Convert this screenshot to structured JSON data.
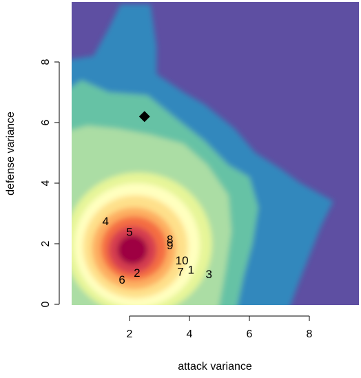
{
  "chart_data": {
    "type": "heatmap",
    "title": "",
    "xlabel": "attack variance",
    "ylabel": "defense variance",
    "xlim": [
      0.05,
      9.85
    ],
    "ylim": [
      -0.05,
      9.85
    ],
    "x_ticks": [
      2,
      4,
      6,
      8
    ],
    "y_ticks": [
      0,
      2,
      4,
      6,
      8
    ],
    "grid": false,
    "legend": "none",
    "colormap": "Spectral (high density = dark red, low density = purple)",
    "colors": {
      "background_low": "#5E4FA2",
      "blue": "#3288BD",
      "teal": "#66C2A5",
      "light_green": "#ABDDA4",
      "pale_yellow": "#E6F598",
      "cream": "#FFFFBF",
      "light_orange": "#FEE08B",
      "orange": "#FDAE61",
      "red_orange": "#F46D43",
      "red": "#D53E4F",
      "dark_red": "#9E0142"
    },
    "density_peak": {
      "x": 2.1,
      "y": 1.8
    },
    "labeled_points": [
      {
        "label": "1",
        "x": 4.05,
        "y": 1.15
      },
      {
        "label": "2",
        "x": 2.25,
        "y": 1.05
      },
      {
        "label": "3",
        "x": 4.65,
        "y": 1.0
      },
      {
        "label": "4",
        "x": 1.2,
        "y": 2.75
      },
      {
        "label": "5",
        "x": 2.0,
        "y": 2.4
      },
      {
        "label": "6",
        "x": 1.75,
        "y": 0.82
      },
      {
        "label": "7",
        "x": 3.7,
        "y": 1.08
      },
      {
        "label": "8",
        "x": 3.35,
        "y": 2.15
      },
      {
        "label": "9",
        "x": 3.35,
        "y": 1.95
      },
      {
        "label": "10",
        "x": 3.75,
        "y": 1.45
      }
    ],
    "marker_points": [
      {
        "shape": "diamond",
        "x": 2.5,
        "y": 6.2
      }
    ]
  }
}
